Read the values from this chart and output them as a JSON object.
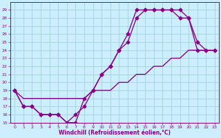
{
  "xlabel": "Windchill (Refroidissement éolien,°C)",
  "bg_color": "#cceeff",
  "line_color": "#880088",
  "grid_color": "#99cccc",
  "spine_color": "#880088",
  "tick_color": "#880088",
  "label_color": "#880088",
  "xlim": [
    -0.5,
    23.5
  ],
  "ylim": [
    15,
    30
  ],
  "xticks": [
    0,
    1,
    2,
    3,
    4,
    5,
    6,
    7,
    8,
    9,
    10,
    11,
    12,
    13,
    14,
    15,
    16,
    17,
    18,
    19,
    20,
    21,
    22,
    23
  ],
  "yticks": [
    15,
    16,
    17,
    18,
    19,
    20,
    21,
    22,
    23,
    24,
    25,
    26,
    27,
    28,
    29
  ],
  "line1_x": [
    0,
    1,
    2,
    3,
    4,
    5,
    6,
    7,
    8,
    9,
    10,
    11,
    12,
    13,
    14,
    15,
    16,
    17,
    18,
    19,
    20,
    21,
    22,
    23
  ],
  "line1_y": [
    19,
    17,
    17,
    16,
    16,
    16,
    15,
    15,
    18,
    19,
    21,
    22,
    24,
    26,
    29,
    29,
    29,
    29,
    29,
    29,
    28,
    24,
    24,
    24
  ],
  "line2_x": [
    0,
    1,
    2,
    3,
    4,
    5,
    6,
    7,
    8,
    9,
    10,
    11,
    12,
    13,
    14,
    15,
    16,
    17,
    18,
    19,
    20,
    21,
    22,
    23
  ],
  "line2_y": [
    19,
    17,
    17,
    16,
    16,
    16,
    15,
    16,
    17,
    19,
    21,
    22,
    24,
    25,
    28,
    29,
    29,
    29,
    29,
    28,
    28,
    25,
    24,
    24
  ],
  "line3_x": [
    0,
    1,
    2,
    3,
    4,
    5,
    6,
    7,
    8,
    9,
    10,
    11,
    12,
    13,
    14,
    15,
    16,
    17,
    18,
    19,
    20,
    21,
    22,
    23
  ],
  "line3_y": [
    19,
    18,
    18,
    18,
    18,
    18,
    18,
    18,
    18,
    19,
    19,
    19,
    20,
    20,
    21,
    21,
    22,
    22,
    23,
    23,
    24,
    24,
    24,
    24
  ],
  "marker": "D",
  "markersize": 2.5,
  "linewidth": 1.0
}
